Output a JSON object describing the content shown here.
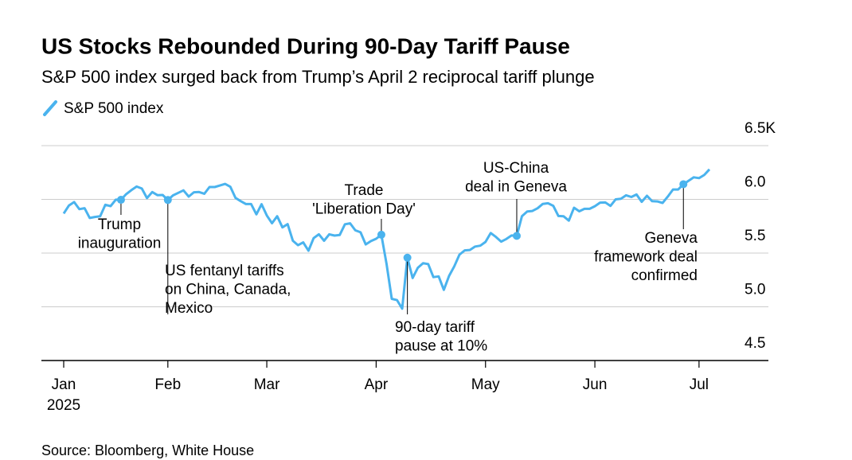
{
  "chart_data": {
    "type": "line",
    "title": "US Stocks Rebounded During 90-Day Tariff Pause",
    "subtitle": "S&P 500 index surged back from Trump’s April 2 reciprocal tariff plunge",
    "source": "Source: Bloomberg, White House",
    "year": "2025",
    "categories": [
      "Jan",
      null,
      null,
      null,
      null,
      null,
      null,
      null,
      null,
      null,
      null,
      null,
      null,
      null,
      null,
      null,
      null,
      null,
      null,
      null,
      "Feb",
      null,
      null,
      null,
      null,
      null,
      null,
      null,
      null,
      null,
      null,
      null,
      null,
      null,
      null,
      null,
      null,
      null,
      null,
      "Mar",
      null,
      null,
      null,
      null,
      null,
      null,
      null,
      null,
      null,
      null,
      null,
      null,
      null,
      null,
      null,
      null,
      null,
      null,
      null,
      null,
      "Apr",
      null,
      null,
      null,
      null,
      null,
      null,
      null,
      null,
      null,
      null,
      null,
      null,
      null,
      null,
      null,
      null,
      null,
      null,
      null,
      null,
      "May",
      null,
      null,
      null,
      null,
      null,
      null,
      null,
      null,
      null,
      null,
      null,
      null,
      null,
      null,
      null,
      null,
      null,
      null,
      null,
      null,
      "Jun",
      null,
      null,
      null,
      null,
      null,
      null,
      null,
      null,
      null,
      null,
      null,
      null,
      null,
      null,
      null,
      null,
      null,
      null,
      null,
      "Jul",
      null,
      null
    ],
    "series": [
      {
        "name": "S&P 500 index",
        "color": "#4ab3ee",
        "values": [
          5.868,
          5.942,
          5.975,
          5.909,
          5.918,
          5.827,
          5.836,
          5.842,
          5.95,
          5.937,
          5.997,
          5.996,
          6.049,
          6.086,
          6.119,
          6.101,
          6.012,
          6.068,
          6.039,
          6.041,
          5.994,
          6.037,
          6.061,
          6.084,
          6.026,
          6.066,
          6.068,
          6.052,
          6.115,
          6.115,
          6.129,
          6.144,
          6.117,
          6.013,
          5.983,
          5.956,
          5.956,
          5.861,
          5.955,
          5.85,
          5.778,
          5.843,
          5.739,
          5.77,
          5.615,
          5.573,
          5.599,
          5.522,
          5.639,
          5.675,
          5.615,
          5.675,
          5.663,
          5.668,
          5.768,
          5.777,
          5.712,
          5.693,
          5.581,
          5.612,
          5.633,
          5.671,
          5.397,
          5.074,
          5.062,
          4.983,
          5.457,
          5.268,
          5.363,
          5.406,
          5.397,
          5.276,
          5.283,
          5.158,
          5.288,
          5.376,
          5.485,
          5.525,
          5.529,
          5.561,
          5.569,
          5.604,
          5.687,
          5.65,
          5.607,
          5.631,
          5.664,
          5.66,
          5.844,
          5.887,
          5.892,
          5.917,
          5.958,
          5.964,
          5.94,
          5.845,
          5.842,
          5.802,
          5.922,
          5.889,
          5.912,
          5.912,
          5.936,
          5.97,
          5.971,
          5.939,
          6.0,
          6.006,
          6.038,
          6.022,
          6.045,
          5.977,
          6.033,
          5.983,
          5.981,
          5.967,
          6.025,
          6.092,
          6.092,
          6.141,
          6.173,
          6.205,
          6.198,
          6.227,
          6.279
        ]
      }
    ],
    "ylim": [
      4.5,
      6.5
    ],
    "yticks": [
      {
        "value": 6.5,
        "label": "6.5K"
      },
      {
        "value": 6.0,
        "label": "6.0"
      },
      5.5,
      {
        "value": 5.0,
        "label": "5.0"
      },
      4.5
    ],
    "grid": true,
    "annotations": [
      {
        "at": 11,
        "lines": [
          "Trump",
          "inauguration"
        ]
      },
      {
        "at": 20,
        "lines": [
          "US fentanyl tariffs",
          "on China, Canada,",
          "Mexico"
        ]
      },
      {
        "at": 61,
        "lines": [
          "Trade",
          "'Liberation Day'"
        ]
      },
      {
        "at": 66,
        "lines": [
          "90-day tariff",
          "pause at 10%"
        ]
      },
      {
        "at": 87,
        "lines": [
          "US-China",
          "deal in Geneva"
        ]
      },
      {
        "at": 119,
        "lines": [
          "Geneva",
          "framework deal",
          "confirmed"
        ]
      }
    ]
  }
}
